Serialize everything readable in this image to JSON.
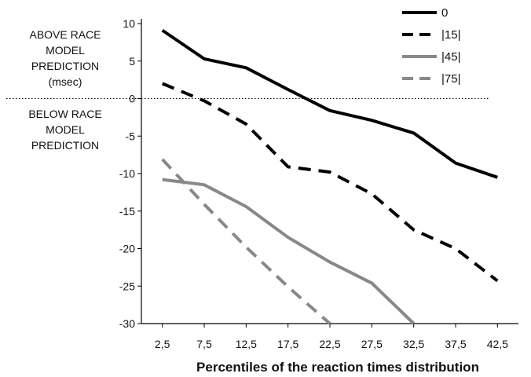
{
  "chart_data": {
    "type": "line",
    "xlabel": "Percentiles of the reaction times distribution",
    "ylabel_above": [
      "ABOVE RACE",
      "MODEL",
      "PREDICTION",
      "(msec)"
    ],
    "ylabel_below": [
      "BELOW RACE",
      "MODEL",
      "PREDICTION"
    ],
    "x": [
      2.5,
      7.5,
      12.5,
      17.5,
      22.5,
      27.5,
      32.5,
      37.5,
      42.5
    ],
    "x_tick_labels": [
      "2,5",
      "7,5",
      "12,5",
      "17,5",
      "22,5",
      "27,5",
      "32,5",
      "37,5",
      "42,5"
    ],
    "ylim": [
      -30,
      10
    ],
    "y_ticks": [
      10,
      5,
      0,
      -5,
      -10,
      -15,
      -20,
      -25,
      -30
    ],
    "y_tick_labels": [
      "10",
      "5",
      "0",
      "-5",
      "-10",
      "-15",
      "-20",
      "-25",
      "-30"
    ],
    "reference_line": 0,
    "grid": false,
    "legend_position": "top-right",
    "series": [
      {
        "name": "0",
        "color": "#000000",
        "dash": "solid",
        "x": [
          2.5,
          7.5,
          12.5,
          17.5,
          22.5,
          27.5,
          32.5,
          37.5,
          42.5
        ],
        "values": [
          9.1,
          5.3,
          4.1,
          1.2,
          -1.6,
          -2.9,
          -4.6,
          -8.6,
          -10.5
        ]
      },
      {
        "name": "|15|",
        "color": "#000000",
        "dash": "dashed",
        "x": [
          2.5,
          7.5,
          12.5,
          17.5,
          22.5,
          27.5,
          32.5,
          37.5,
          42.5
        ],
        "values": [
          2.0,
          -0.3,
          -3.4,
          -9.1,
          -9.8,
          -12.7,
          -17.5,
          -20.0,
          -24.3
        ]
      },
      {
        "name": "|45|",
        "color": "#888888",
        "dash": "solid",
        "x": [
          2.5,
          7.5,
          12.5,
          17.5,
          22.5,
          27.5,
          32.5
        ],
        "values": [
          -10.8,
          -11.5,
          -14.4,
          -18.5,
          -21.8,
          -24.6,
          -30.0
        ]
      },
      {
        "name": "|75|",
        "color": "#888888",
        "dash": "dashed",
        "x": [
          2.5,
          7.5,
          12.5,
          17.5,
          22.5
        ],
        "values": [
          -8.1,
          -14.1,
          -19.8,
          -25.1,
          -30.0
        ]
      }
    ]
  }
}
